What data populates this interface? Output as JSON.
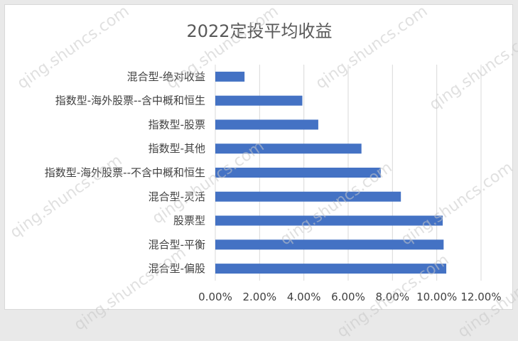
{
  "watermark_text": "qing.shuncs.com",
  "chart_data": {
    "type": "bar",
    "orientation": "horizontal",
    "title": "2022定投平均收益",
    "categories": [
      "混合型-绝对收益",
      "指数型-海外股票--含中概和恒生",
      "指数型-股票",
      "指数型-其他",
      "指数型-海外股票--不含中概和恒生",
      "混合型-灵活",
      "股票型",
      "混合型-平衡",
      "混合型-偏股"
    ],
    "values": [
      0.0132,
      0.0393,
      0.0465,
      0.066,
      0.0747,
      0.0838,
      0.1027,
      0.1031,
      0.1043
    ],
    "xlim": [
      0,
      0.12
    ],
    "x_ticks": [
      0,
      0.02,
      0.04,
      0.06,
      0.08,
      0.1,
      0.12
    ],
    "x_tick_labels": [
      "0.00%",
      "2.00%",
      "4.00%",
      "6.00%",
      "8.00%",
      "10.00%",
      "12.00%"
    ],
    "xlabel": "",
    "ylabel": "",
    "grid": "vertical",
    "legend": "none",
    "bar_color": "#4472c4"
  }
}
